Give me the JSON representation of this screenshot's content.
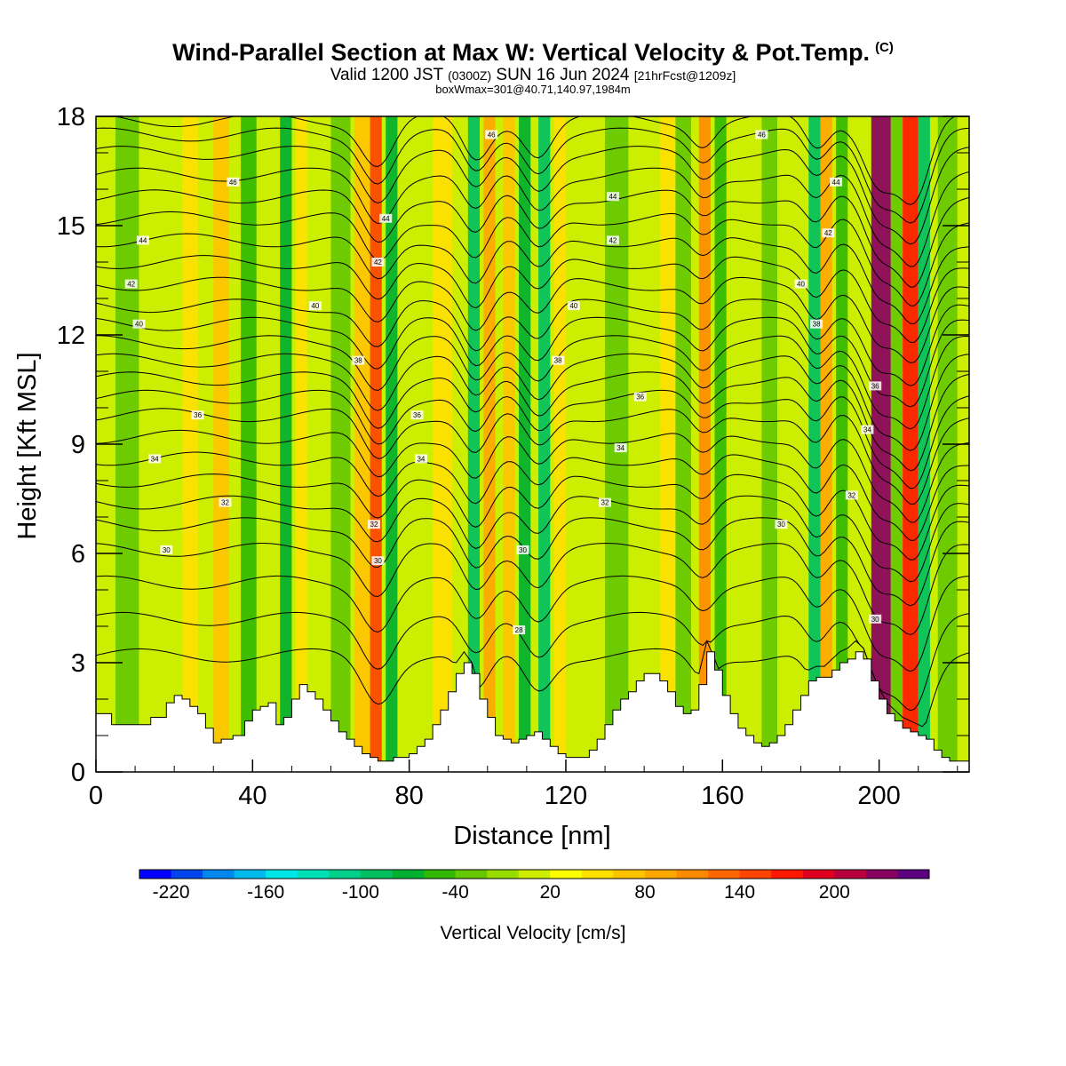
{
  "header": {
    "title": "Wind-Parallel Section at Max W: Vertical Velocity & Pot.Temp.",
    "copyright": "(C)",
    "valid_prefix": "Valid 1200 JST",
    "valid_utc": "(0300Z)",
    "valid_date": "SUN 16 Jun 2024",
    "forecast": "[21hrFcst@1209z]",
    "box_info": "boxWmax=301@40.71,140.97,1984m"
  },
  "chart_data": {
    "type": "heatmap",
    "xlabel": "Distance [nm]",
    "ylabel": "Height [Kft MSL]",
    "xlim": [
      0,
      223
    ],
    "ylim": [
      0,
      18
    ],
    "x_ticks": [
      "0",
      "40",
      "80",
      "120",
      "160",
      "200"
    ],
    "y_ticks": [
      "0",
      "3",
      "6",
      "9",
      "12",
      "15",
      "18"
    ],
    "colorbar": {
      "label": "Vertical Velocity [cm/s]",
      "min": -240,
      "max": 260,
      "step": 20,
      "tick_labels": [
        "-220",
        "-160",
        "-100",
        "-40",
        "20",
        "80",
        "140",
        "200"
      ],
      "colors": [
        "#0000ff",
        "#0044ee",
        "#0088ee",
        "#00bbee",
        "#00e5e5",
        "#00e0b8",
        "#00d08a",
        "#00c060",
        "#00b030",
        "#33b800",
        "#66c800",
        "#99dd00",
        "#ccee00",
        "#ffff00",
        "#ffe000",
        "#ffc400",
        "#ffa800",
        "#ff8c00",
        "#ff6800",
        "#ff4400",
        "#ff1800",
        "#e00020",
        "#b80040",
        "#8a0060",
        "#5a0080"
      ]
    },
    "vertical_velocity_bands": [
      {
        "x": 5,
        "w": 6,
        "value": -40
      },
      {
        "x": 22,
        "w": 4,
        "value": 40
      },
      {
        "x": 30,
        "w": 4,
        "value": 60
      },
      {
        "x": 37,
        "w": 4,
        "value": -60
      },
      {
        "x": 47,
        "w": 3,
        "value": -80
      },
      {
        "x": 51,
        "w": 3,
        "value": 40
      },
      {
        "x": 60,
        "w": 5,
        "value": -40
      },
      {
        "x": 66,
        "w": 4,
        "value": 60
      },
      {
        "x": 70,
        "w": 3,
        "value": 140
      },
      {
        "x": 74,
        "w": 3,
        "value": -80
      },
      {
        "x": 86,
        "w": 5,
        "value": 40
      },
      {
        "x": 95,
        "w": 3,
        "value": -100
      },
      {
        "x": 99,
        "w": 3,
        "value": 80
      },
      {
        "x": 104,
        "w": 3,
        "value": 60
      },
      {
        "x": 108,
        "w": 3,
        "value": -80
      },
      {
        "x": 113,
        "w": 3,
        "value": -100
      },
      {
        "x": 117,
        "w": 3,
        "value": 40
      },
      {
        "x": 130,
        "w": 6,
        "value": -40
      },
      {
        "x": 144,
        "w": 4,
        "value": 40
      },
      {
        "x": 148,
        "w": 4,
        "value": -40
      },
      {
        "x": 154,
        "w": 3,
        "value": 100
      },
      {
        "x": 158,
        "w": 3,
        "value": -60
      },
      {
        "x": 170,
        "w": 4,
        "value": -40
      },
      {
        "x": 182,
        "w": 3,
        "value": -100
      },
      {
        "x": 185,
        "w": 3,
        "value": 80
      },
      {
        "x": 189,
        "w": 3,
        "value": -60
      },
      {
        "x": 198,
        "w": 5,
        "value": 220
      },
      {
        "x": 203,
        "w": 3,
        "value": -40
      },
      {
        "x": 206,
        "w": 4,
        "value": 160
      },
      {
        "x": 210,
        "w": 3,
        "value": -100
      },
      {
        "x": 215,
        "w": 5,
        "value": -40
      }
    ],
    "terrain_profile": {
      "x": [
        0,
        4,
        10,
        14,
        18,
        20,
        22,
        24,
        26,
        28,
        30,
        32,
        35,
        38,
        40,
        42,
        44,
        46,
        48,
        50,
        52,
        54,
        56,
        58,
        60,
        62,
        64,
        66,
        68,
        70,
        72,
        74,
        76,
        78,
        80,
        82,
        84,
        86,
        88,
        90,
        92,
        94,
        96,
        98,
        100,
        102,
        104,
        106,
        108,
        110,
        112,
        114,
        116,
        118,
        120,
        122,
        124,
        126,
        128,
        130,
        132,
        134,
        136,
        138,
        140,
        142,
        144,
        146,
        148,
        150,
        152,
        154,
        156,
        158,
        160,
        162,
        164,
        166,
        168,
        170,
        172,
        174,
        176,
        178,
        180,
        182,
        184,
        186,
        188,
        190,
        192,
        194,
        196,
        198,
        200,
        202,
        204,
        206,
        208,
        210,
        212,
        214,
        216,
        218,
        220,
        223
      ],
      "y": [
        1.6,
        1.3,
        1.3,
        1.5,
        1.9,
        2.1,
        2.0,
        1.8,
        1.6,
        1.2,
        0.8,
        0.9,
        1.0,
        1.4,
        1.7,
        1.8,
        1.9,
        1.3,
        1.5,
        2.0,
        2.4,
        2.2,
        2.0,
        1.7,
        1.4,
        1.1,
        0.9,
        0.7,
        0.5,
        0.4,
        0.3,
        0.3,
        0.4,
        0.4,
        0.5,
        0.7,
        0.9,
        1.3,
        1.7,
        2.2,
        2.7,
        3.0,
        2.7,
        2.0,
        1.5,
        1.0,
        0.9,
        0.8,
        0.9,
        1.0,
        1.1,
        0.9,
        0.7,
        0.5,
        0.4,
        0.4,
        0.4,
        0.6,
        0.9,
        1.3,
        1.7,
        2.0,
        2.2,
        2.5,
        2.7,
        2.7,
        2.5,
        2.2,
        1.8,
        1.6,
        1.7,
        2.4,
        3.3,
        2.8,
        2.1,
        1.6,
        1.2,
        1.0,
        0.8,
        0.7,
        0.8,
        1.0,
        1.3,
        1.7,
        2.1,
        2.5,
        2.6,
        2.6,
        2.8,
        3.0,
        3.1,
        3.3,
        3.1,
        2.5,
        2.0,
        1.6,
        1.4,
        1.2,
        1.1,
        1.0,
        0.9,
        0.6,
        0.4,
        0.3,
        0.3,
        0.3
      ]
    },
    "theta_contours": {
      "levels": [
        300,
        302,
        304,
        306,
        308,
        310,
        312,
        314,
        316,
        318,
        320,
        322,
        324,
        326,
        328,
        330,
        332,
        334,
        336,
        338,
        340,
        342,
        344,
        346,
        348
      ],
      "level_heights_kft": [
        3.2,
        4.2,
        5.2,
        6.1,
        6.8,
        7.4,
        8.0,
        8.6,
        9.2,
        9.8,
        10.3,
        10.8,
        11.3,
        11.8,
        12.3,
        12.8,
        13.4,
        14.0,
        14.6,
        15.2,
        15.8,
        16.4,
        17.0,
        17.5,
        17.9
      ],
      "labels": [
        {
          "text": "30",
          "x": 18,
          "y": 6.1
        },
        {
          "text": "32",
          "x": 33,
          "y": 7.4
        },
        {
          "text": "34",
          "x": 15,
          "y": 8.6
        },
        {
          "text": "36",
          "x": 26,
          "y": 9.8
        },
        {
          "text": "40",
          "x": 11,
          "y": 12.3
        },
        {
          "text": "42",
          "x": 9,
          "y": 13.4
        },
        {
          "text": "44",
          "x": 12,
          "y": 14.6
        },
        {
          "text": "46",
          "x": 35,
          "y": 16.2
        },
        {
          "text": "40",
          "x": 56,
          "y": 12.8
        },
        {
          "text": "42",
          "x": 72,
          "y": 14.0
        },
        {
          "text": "44",
          "x": 74,
          "y": 15.2
        },
        {
          "text": "38",
          "x": 67,
          "y": 11.3
        },
        {
          "text": "36",
          "x": 82,
          "y": 9.8
        },
        {
          "text": "34",
          "x": 83,
          "y": 8.6
        },
        {
          "text": "32",
          "x": 71,
          "y": 6.8
        },
        {
          "text": "30",
          "x": 72,
          "y": 5.8
        },
        {
          "text": "28",
          "x": 108,
          "y": 3.9
        },
        {
          "text": "30",
          "x": 109,
          "y": 6.1
        },
        {
          "text": "46",
          "x": 101,
          "y": 17.5
        },
        {
          "text": "38",
          "x": 118,
          "y": 11.3
        },
        {
          "text": "40",
          "x": 122,
          "y": 12.8
        },
        {
          "text": "36",
          "x": 139,
          "y": 10.3
        },
        {
          "text": "34",
          "x": 134,
          "y": 8.9
        },
        {
          "text": "32",
          "x": 130,
          "y": 7.4
        },
        {
          "text": "42",
          "x": 132,
          "y": 14.6
        },
        {
          "text": "44",
          "x": 132,
          "y": 15.8
        },
        {
          "text": "46",
          "x": 170,
          "y": 17.5
        },
        {
          "text": "30",
          "x": 175,
          "y": 6.8
        },
        {
          "text": "38",
          "x": 184,
          "y": 12.3
        },
        {
          "text": "40",
          "x": 180,
          "y": 13.4
        },
        {
          "text": "42",
          "x": 187,
          "y": 14.8
        },
        {
          "text": "44",
          "x": 189,
          "y": 16.2
        },
        {
          "text": "36",
          "x": 199,
          "y": 10.6
        },
        {
          "text": "34",
          "x": 197,
          "y": 9.4
        },
        {
          "text": "32",
          "x": 193,
          "y": 7.6
        },
        {
          "text": "30",
          "x": 199,
          "y": 4.2
        }
      ]
    }
  }
}
